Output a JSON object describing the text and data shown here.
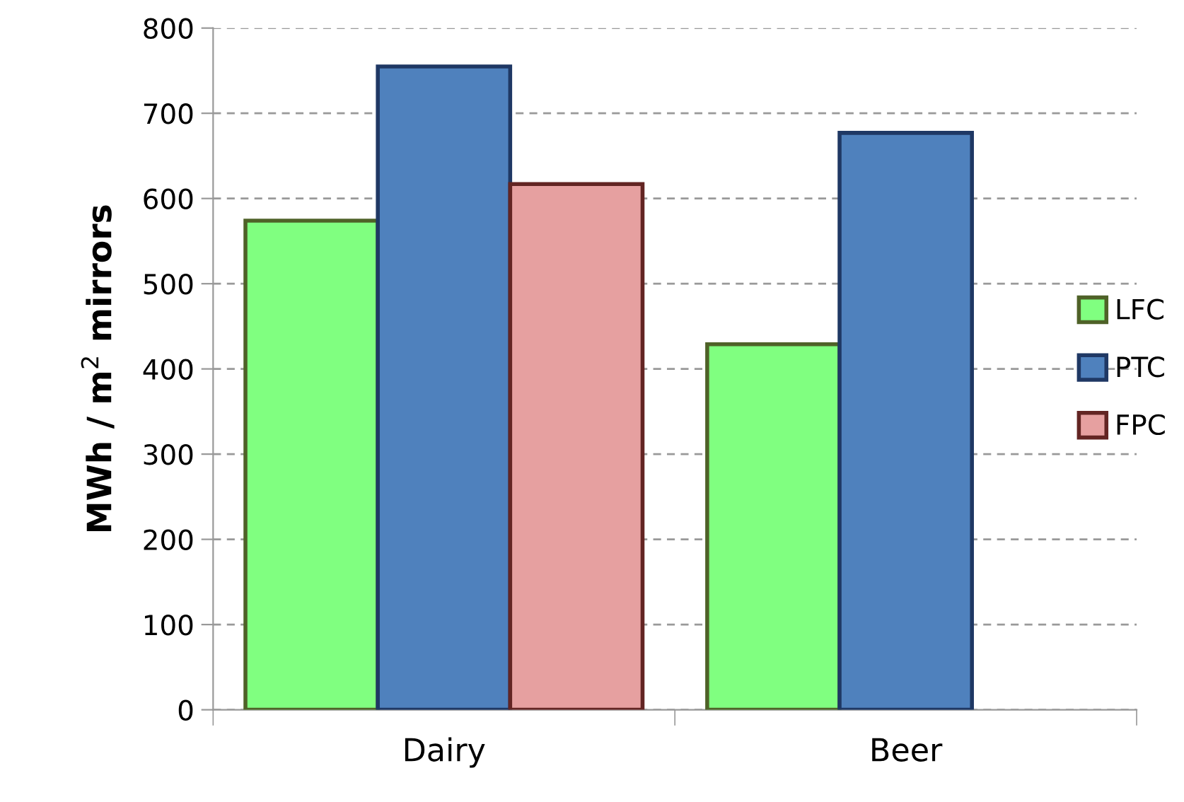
{
  "chart_data": {
    "type": "bar",
    "ylabel": "MWh / m$^{2}$ mirrors",
    "categories": [
      "Dairy",
      "Beer"
    ],
    "series": [
      {
        "name": "LFC",
        "color": "#80ff80",
        "values": [
          574,
          429
        ]
      },
      {
        "name": "PTC",
        "color": "#4f81bd",
        "values": [
          755,
          677
        ]
      },
      {
        "name": "FPC",
        "color": "#e6a0a0",
        "values": [
          617,
          null
        ]
      }
    ],
    "ylim": [
      0,
      800
    ],
    "yticks": [
      0,
      100,
      200,
      300,
      400,
      500,
      600,
      700,
      800
    ],
    "grid": "y",
    "legend": "right"
  }
}
